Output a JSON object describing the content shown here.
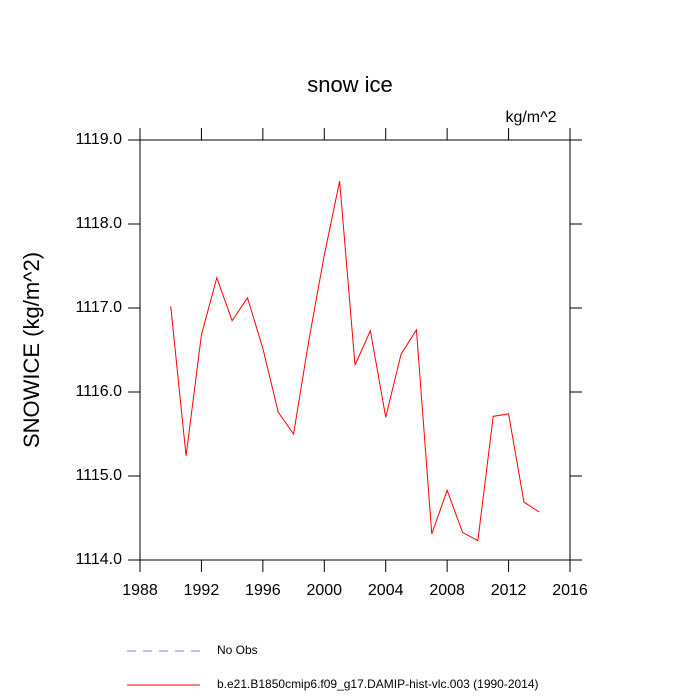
{
  "chart_data": {
    "type": "line",
    "title": "snow ice",
    "units": "kg/m^2",
    "y_label": "SNOWICE  (kg/m^2)",
    "x": [
      1990,
      1991,
      1992,
      1993,
      1994,
      1995,
      1996,
      1997,
      1998,
      1999,
      2000,
      2001,
      2002,
      2003,
      2004,
      2005,
      2006,
      2007,
      2008,
      2009,
      2010,
      2011,
      2012,
      2013,
      2014
    ],
    "series": [
      {
        "name": "b.e21.B1850cmip6.f09_g17.DAMIP-hist-vlc.003 (1990-2014)",
        "color": "#ff0000",
        "values": [
          1117.02,
          1115.24,
          1116.68,
          1117.36,
          1116.85,
          1117.12,
          1116.52,
          1115.76,
          1115.5,
          1116.62,
          1117.63,
          1118.51,
          1116.32,
          1116.73,
          1115.7,
          1116.45,
          1116.74,
          1114.31,
          1114.83,
          1114.33,
          1114.23,
          1115.71,
          1115.74,
          1114.69,
          1114.57
        ]
      }
    ],
    "reference_legend": [
      {
        "name": "No Obs",
        "color": "#8080f0",
        "dashed": true
      }
    ],
    "xlim": [
      1988,
      2016
    ],
    "xticks": [
      1988,
      1992,
      1996,
      2000,
      2004,
      2008,
      2012,
      2016
    ],
    "ylim": [
      1114,
      1119
    ],
    "yticks": [
      {
        "value": 1114,
        "label": "1114.0"
      },
      {
        "value": 1115,
        "label": "1115.0"
      },
      {
        "value": 1116,
        "label": "1116.0"
      },
      {
        "value": 1117,
        "label": "1117.0"
      },
      {
        "value": 1118,
        "label": "1118.0"
      },
      {
        "value": 1119,
        "label": "1119.0"
      }
    ]
  }
}
